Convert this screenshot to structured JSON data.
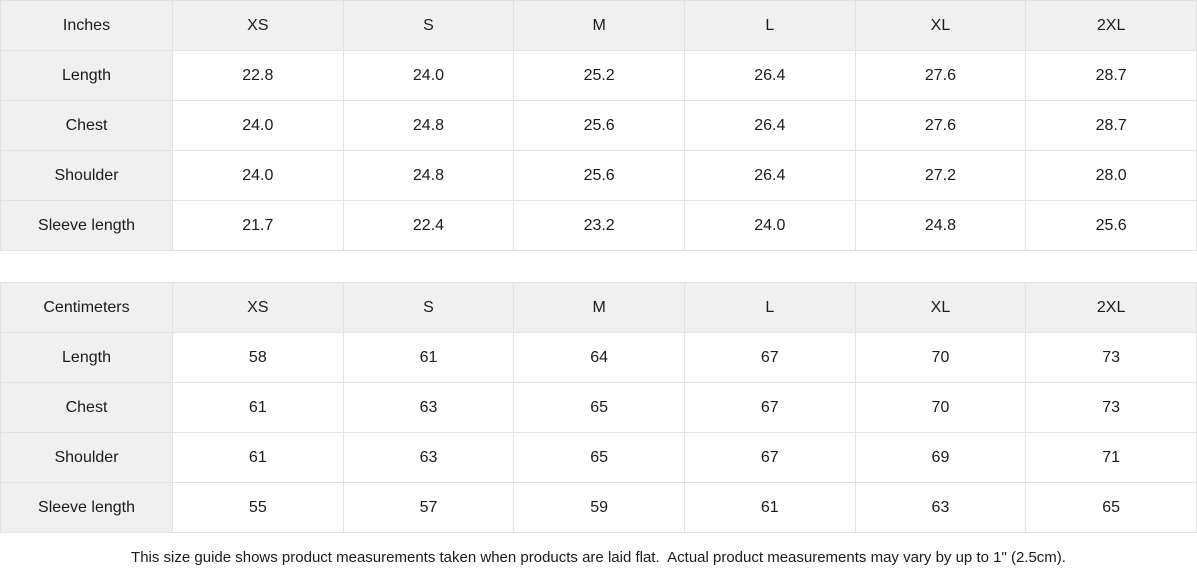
{
  "tables": [
    {
      "unit_label": "Inches",
      "sizes": [
        "XS",
        "S",
        "M",
        "L",
        "XL",
        "2XL"
      ],
      "rows": [
        {
          "label": "Length",
          "values": [
            "22.8",
            "24.0",
            "25.2",
            "26.4",
            "27.6",
            "28.7"
          ]
        },
        {
          "label": "Chest",
          "values": [
            "24.0",
            "24.8",
            "25.6",
            "26.4",
            "27.6",
            "28.7"
          ]
        },
        {
          "label": "Shoulder",
          "values": [
            "24.0",
            "24.8",
            "25.6",
            "26.4",
            "27.2",
            "28.0"
          ]
        },
        {
          "label": "Sleeve length",
          "values": [
            "21.7",
            "22.4",
            "23.2",
            "24.0",
            "24.8",
            "25.6"
          ]
        }
      ]
    },
    {
      "unit_label": "Centimeters",
      "sizes": [
        "XS",
        "S",
        "M",
        "L",
        "XL",
        "2XL"
      ],
      "rows": [
        {
          "label": "Length",
          "values": [
            "58",
            "61",
            "64",
            "67",
            "70",
            "73"
          ]
        },
        {
          "label": "Chest",
          "values": [
            "61",
            "63",
            "65",
            "67",
            "70",
            "73"
          ]
        },
        {
          "label": "Shoulder",
          "values": [
            "61",
            "63",
            "65",
            "67",
            "69",
            "71"
          ]
        },
        {
          "label": "Sleeve length",
          "values": [
            "55",
            "57",
            "59",
            "61",
            "63",
            "65"
          ]
        }
      ]
    }
  ],
  "footnote": "This size guide shows product measurements taken when products are laid flat.  Actual product measurements may vary by up to 1\" (2.5cm).",
  "colors": {
    "header_bg": "#f0f0f0",
    "border": "#e2e2e2",
    "text": "#1b1b1d",
    "background": "#ffffff"
  }
}
